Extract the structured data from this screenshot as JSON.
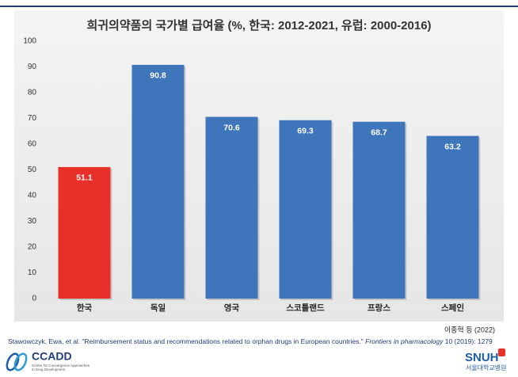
{
  "chart_data": {
    "type": "bar",
    "title": "희귀의약품의 국가별 급여율 (%, 한국: 2012-2021, 유럽: 2000-2016)",
    "categories": [
      "한국",
      "독일",
      "영국",
      "스코틀랜드",
      "프랑스",
      "스페인"
    ],
    "values": [
      51.1,
      90.8,
      70.6,
      69.3,
      68.7,
      63.2
    ],
    "colors": [
      "#e8302b",
      "#3f75bb",
      "#3f75bb",
      "#3f75bb",
      "#3f75bb",
      "#3f75bb"
    ],
    "ylim": [
      0,
      100
    ],
    "yticks": [
      0,
      10,
      20,
      30,
      40,
      50,
      60,
      70,
      80,
      90,
      100
    ],
    "grid": false
  },
  "source": "이종혁 등 (2022)",
  "citation": {
    "before": "Stawowczyk, Ewa, et al. \"Reimbursement status and recommendations related to orphan drugs in European countries.\"",
    "journal": "Frontiers in pharmacology",
    "after": "10 (2019): 1279"
  },
  "logos": {
    "left": "CCADD",
    "left_sub1": "Center for Convergence Approaches",
    "left_sub2": "in Drug Development",
    "right": "SNUH",
    "right_sub": "서울대학교병원"
  }
}
